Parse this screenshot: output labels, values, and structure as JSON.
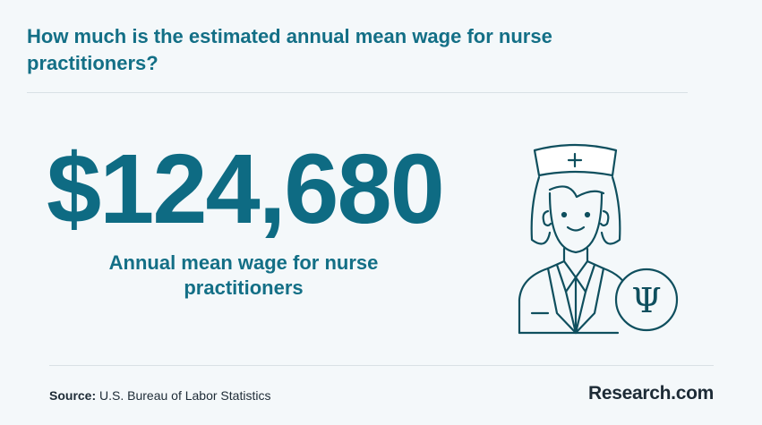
{
  "header": {
    "title": "How much is the estimated annual mean wage  for nurse practitioners?"
  },
  "stat": {
    "value": "$124,680",
    "caption": "Annual mean wage  for nurse practitioners"
  },
  "illustration": {
    "icon": "nurse-icon",
    "badge_icon": "psi-symbol-icon",
    "badge_glyph": "Ψ"
  },
  "footer": {
    "source_label": "Source:",
    "source_text": "U.S. Bureau of Labor Statistics",
    "brand": "Research.com"
  },
  "colors": {
    "accent": "#136f86",
    "background": "#f4f8fa",
    "text": "#1d2b36"
  }
}
